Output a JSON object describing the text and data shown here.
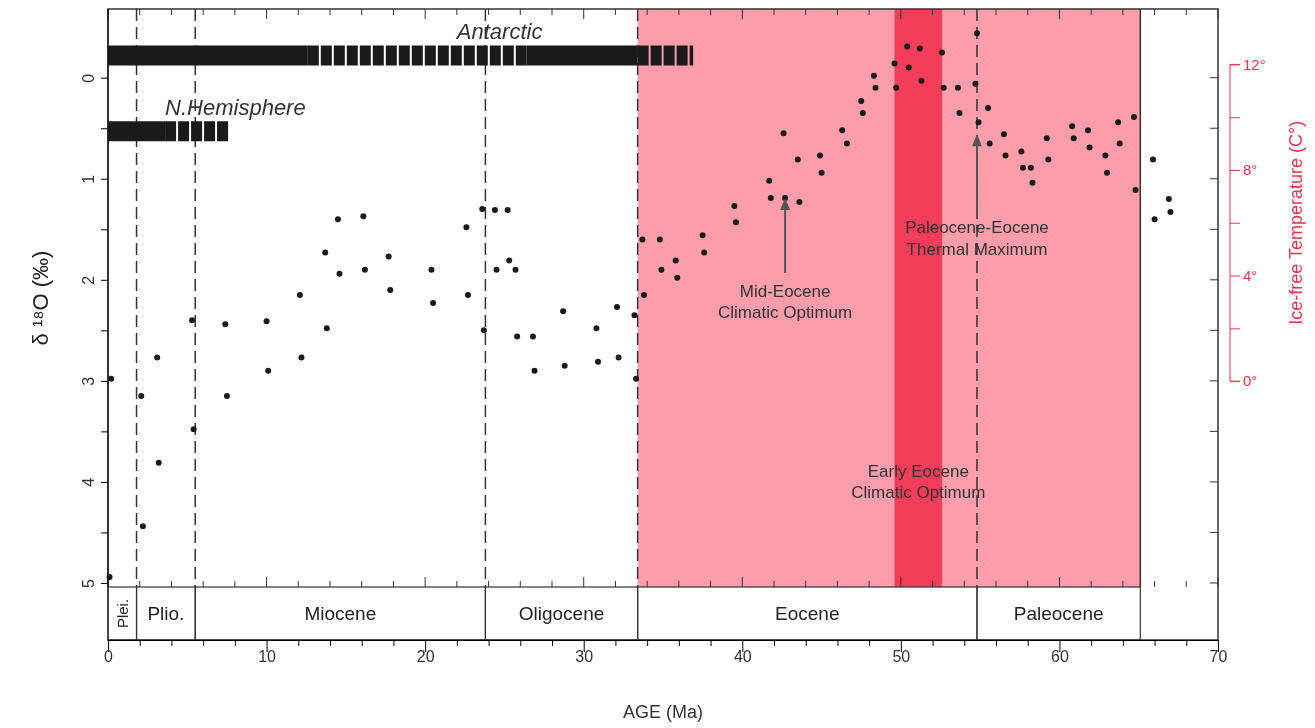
{
  "chart_data": {
    "type": "scatter",
    "xlabel": "AGE (Ma)",
    "ylabel": "δ ¹⁸O (‰)",
    "y2label": "Ice-free Temperature (C°)",
    "xlim": [
      0,
      70
    ],
    "ylim": [
      5.04,
      -0.68
    ],
    "y2lim": [
      -7.8,
      14.1
    ],
    "xticks": [
      0,
      {
        "value": 2,
        "label": null
      },
      {
        "value": 4,
        "label": null
      },
      {
        "value": 6,
        "label": null
      },
      {
        "value": 8,
        "label": null
      },
      10,
      {
        "value": 12,
        "label": null
      },
      {
        "value": 14,
        "label": null
      },
      {
        "value": 16,
        "label": null
      },
      {
        "value": 18,
        "label": null
      },
      20,
      {
        "value": 22,
        "label": null
      },
      {
        "value": 24,
        "label": null
      },
      {
        "value": 26,
        "label": null
      },
      {
        "value": 28,
        "label": null
      },
      30,
      {
        "value": 32,
        "label": null
      },
      {
        "value": 34,
        "label": null
      },
      {
        "value": 36,
        "label": null
      },
      {
        "value": 38,
        "label": null
      },
      40,
      {
        "value": 42,
        "label": null
      },
      {
        "value": 44,
        "label": null
      },
      {
        "value": 46,
        "label": null
      },
      {
        "value": 48,
        "label": null
      },
      50,
      {
        "value": 52,
        "label": null
      },
      {
        "value": 54,
        "label": null
      },
      {
        "value": 56,
        "label": null
      },
      {
        "value": 58,
        "label": null
      },
      60,
      {
        "value": 62,
        "label": null
      },
      {
        "value": 64,
        "label": null
      },
      {
        "value": 66,
        "label": null
      },
      {
        "value": 68,
        "label": null
      },
      70
    ],
    "yticks": [
      0,
      {
        "value": 0.5,
        "label": null
      },
      1,
      {
        "value": 1.5,
        "label": null
      },
      2,
      {
        "value": 2.5,
        "label": null
      },
      3,
      {
        "value": 3.5,
        "label": null
      },
      4,
      {
        "value": 4.5,
        "label": null
      },
      5
    ],
    "y2ticks": [
      {
        "value": 0,
        "label": "0°"
      },
      {
        "value": 2,
        "label": null
      },
      {
        "value": 4,
        "label": "4°"
      },
      {
        "value": 6,
        "label": null
      },
      {
        "value": 8,
        "label": "8°"
      },
      {
        "value": 10,
        "label": null
      },
      {
        "value": 12,
        "label": "12°"
      }
    ],
    "series": [
      {
        "color": "#1a1a1a",
        "x": [
          0.1,
          0.2,
          2.1,
          2.2,
          3.1,
          3.2,
          5.3,
          5.4,
          7.4,
          7.5,
          10.0,
          10.1,
          12.1,
          12.2,
          13.7,
          13.8,
          14.5,
          14.6,
          16.1,
          16.2,
          17.7,
          17.8,
          20.4,
          20.5,
          22.6,
          22.7,
          23.6,
          23.7,
          24.4,
          24.5,
          25.2,
          25.3,
          25.7,
          25.8,
          26.8,
          26.9,
          28.7,
          28.8,
          30.8,
          30.9,
          32.1,
          32.2,
          33.2,
          33.3,
          33.7,
          33.8,
          34.8,
          34.9,
          35.8,
          35.9,
          37.5,
          37.6,
          39.5,
          39.6,
          41.7,
          41.8,
          42.6,
          42.7,
          43.5,
          43.6,
          44.9,
          45.0,
          46.3,
          46.6,
          47.5,
          47.6,
          48.3,
          48.4,
          49.6,
          49.7,
          50.4,
          50.5,
          51.2,
          51.3,
          52.6,
          52.7,
          53.6,
          53.7,
          54.7,
          54.8,
          54.9,
          55.5,
          55.6,
          56.5,
          56.6,
          57.6,
          57.7,
          58.2,
          58.3,
          59.2,
          59.3,
          60.8,
          60.9,
          61.8,
          61.9,
          62.9,
          63.0,
          63.7,
          63.8,
          64.7,
          64.8,
          65.9,
          66.0,
          66.9,
          67.0
        ],
        "values": [
          4.94,
          2.98,
          3.15,
          4.44,
          2.77,
          3.81,
          2.4,
          3.48,
          2.44,
          3.15,
          2.41,
          2.9,
          2.15,
          2.77,
          1.73,
          2.48,
          1.4,
          1.94,
          1.37,
          1.9,
          1.77,
          2.1,
          1.9,
          2.23,
          1.48,
          2.15,
          1.3,
          2.5,
          1.31,
          1.9,
          1.31,
          1.81,
          1.9,
          2.56,
          2.56,
          2.9,
          2.31,
          2.85,
          2.48,
          2.81,
          2.27,
          2.77,
          2.35,
          2.98,
          1.6,
          2.15,
          1.6,
          1.9,
          1.81,
          1.98,
          1.56,
          1.73,
          1.27,
          1.43,
          1.02,
          1.19,
          0.55,
          1.19,
          0.81,
          1.23,
          0.77,
          0.94,
          0.52,
          0.65,
          0.23,
          0.35,
          -0.02,
          0.1,
          -0.14,
          0.1,
          -0.31,
          -0.1,
          -0.29,
          0.03,
          -0.25,
          0.1,
          0.1,
          0.35,
          0.06,
          -0.44,
          0.44,
          0.3,
          0.65,
          0.56,
          0.77,
          0.73,
          0.89,
          0.89,
          1.04,
          0.6,
          0.81,
          0.48,
          0.6,
          0.52,
          0.69,
          0.77,
          0.94,
          0.44,
          0.65,
          0.39,
          1.11,
          0.81,
          1.4,
          1.2,
          1.33
        ]
      },
      {
        "type": "line",
        "color": "#1a1a1a",
        "line_style": "solid",
        "x": [
          0,
          12.6
        ],
        "values": [
          -0.22,
          -0.22
        ]
      },
      {
        "type": "line",
        "color": "#1a1a1a",
        "line_style": "dashed",
        "x": [
          12.6,
          26.4
        ],
        "values": [
          -0.22,
          -0.22
        ]
      },
      {
        "type": "line",
        "color": "#1a1a1a",
        "line_style": "solid",
        "x": [
          26.4,
          33.4
        ],
        "values": [
          -0.22,
          -0.22
        ]
      },
      {
        "type": "line",
        "color": "#1a1a1a",
        "line_style": "dashed",
        "x": [
          33.4,
          36.9
        ],
        "values": [
          -0.22,
          -0.22
        ]
      },
      {
        "type": "line",
        "color": "#1a1a1a",
        "line_style": "solid",
        "x": [
          0,
          3.6
        ],
        "values": [
          0.53,
          0.53
        ]
      },
      {
        "type": "line",
        "color": "#1a1a1a",
        "line_style": "dashed",
        "x": [
          3.6,
          7.6
        ],
        "values": [
          0.53,
          0.53
        ]
      }
    ],
    "bands": [
      {
        "axis": "x",
        "from": 33.4,
        "to": 65.1,
        "color": "#fb9dab"
      },
      {
        "axis": "x",
        "from": 49.6,
        "to": 52.6,
        "color": "#f43d5a"
      }
    ],
    "ref_lines": [
      {
        "axis": "x",
        "value": 1.8,
        "line_style": "dashed"
      },
      {
        "axis": "x",
        "value": 5.5,
        "line_style": "dashed"
      },
      {
        "axis": "x",
        "value": 23.8,
        "line_style": "dashed"
      },
      {
        "axis": "x",
        "value": 33.4,
        "line_style": "dashed"
      },
      {
        "axis": "x",
        "value": 54.8,
        "line_style": "dashed"
      },
      {
        "axis": "x",
        "value": 65.1,
        "line_style": "solid"
      }
    ],
    "annotations": [
      {
        "text": "Antarctic",
        "x": 22,
        "y": -0.22
      },
      {
        "text": "N.Hemisphere",
        "x": 3.6,
        "y": 0.53
      },
      {
        "text": "Mid-Eocene\nClimatic Optimum",
        "x": 42.7,
        "y": 1.19
      },
      {
        "text": "Paleocene-Eocene\nThermal Maximum",
        "x": 54.8,
        "y": 0.56
      },
      "Plei.",
      "Plio.",
      "Miocene",
      "Oligocene",
      "Eocene",
      "Paleocene",
      "Early Eocene\nClimatic Optimum"
    ]
  }
}
